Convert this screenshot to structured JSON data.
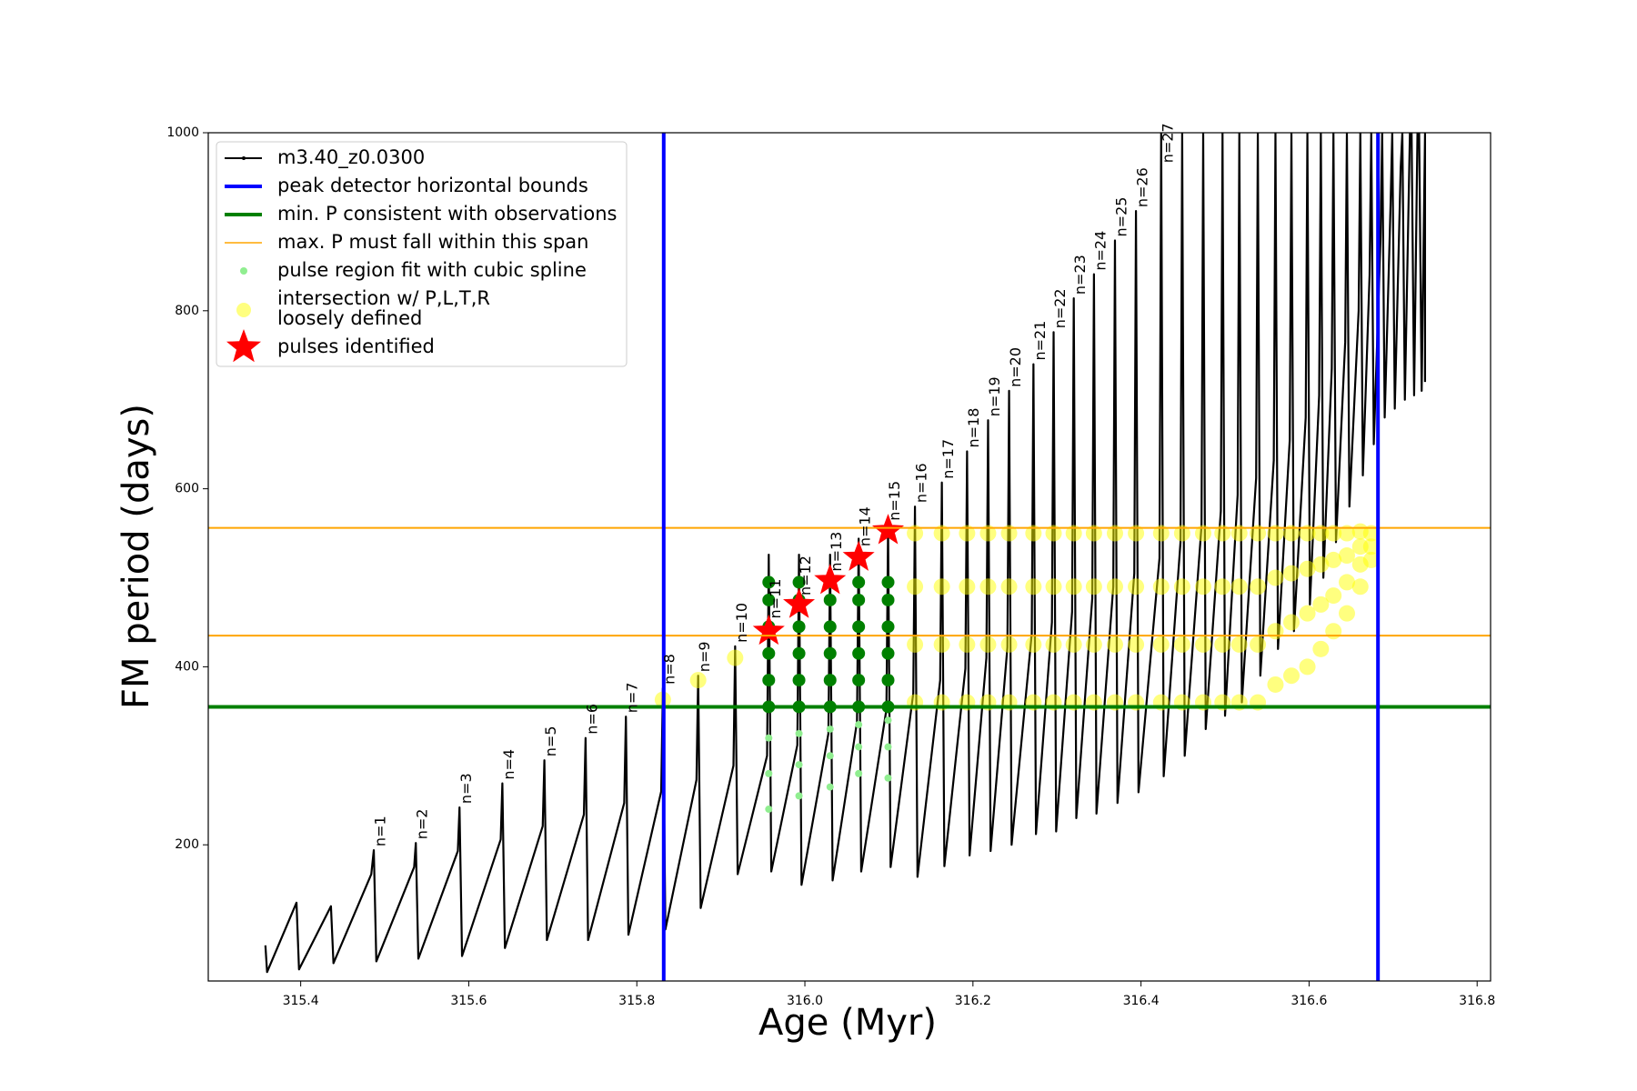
{
  "chart_data": {
    "type": "line",
    "xlabel": "Age (Myr)",
    "ylabel": "FM period (days)",
    "xlim": [
      315.29,
      316.816
    ],
    "ylim": [
      47,
      1000
    ],
    "xticks": [
      315.4,
      315.6,
      315.8,
      {
        "value": 316,
        "label": "316.0"
      },
      316.2,
      316.4,
      316.6,
      316.8
    ],
    "yticks": [
      200,
      400,
      600,
      800,
      1000
    ],
    "series": [
      {
        "name": "m3.40_z0.0300",
        "color": "#000000",
        "kind": "line",
        "x": [
          315.358,
          315.36,
          315.395,
          315.398,
          315.436,
          315.439,
          315.484,
          315.487,
          315.49,
          315.535,
          315.537,
          315.54,
          315.587,
          315.589,
          315.592,
          315.638,
          315.64,
          315.643,
          315.688,
          315.69,
          315.693,
          315.737,
          315.739,
          315.742,
          315.785,
          315.787,
          315.79,
          315.829,
          315.831,
          315.834,
          315.871,
          315.873,
          315.876,
          315.915,
          315.917,
          315.92,
          315.955,
          315.957,
          315.96,
          315.991,
          315.993,
          315.996,
          316.028,
          316.03,
          316.033,
          316.062,
          316.064,
          316.067,
          316.097,
          316.099,
          316.102,
          316.129,
          316.131,
          316.134,
          316.161,
          316.163,
          316.166,
          316.191,
          316.193,
          316.196,
          316.216,
          316.218,
          316.221,
          316.241,
          316.243,
          316.246,
          316.27,
          316.272,
          316.275,
          316.294,
          316.296,
          316.299,
          316.318,
          316.32,
          316.323,
          316.342,
          316.344,
          316.347,
          316.367,
          316.369,
          316.372,
          316.392,
          316.394,
          316.397,
          316.422,
          316.424,
          316.427,
          316.447,
          316.449,
          316.452,
          316.472,
          316.474,
          316.477,
          316.495,
          316.497,
          316.5,
          316.515,
          316.517,
          316.52,
          316.537,
          316.539,
          316.542,
          316.558,
          316.56,
          316.563,
          316.577,
          316.579,
          316.582,
          316.596,
          316.598,
          316.601,
          316.612,
          316.614,
          316.617,
          316.627,
          316.629,
          316.632,
          316.643,
          316.645,
          316.648,
          316.659,
          316.661,
          316.664,
          316.672,
          316.674,
          316.677,
          316.685,
          316.687,
          316.69,
          316.697,
          316.699,
          316.702,
          316.709,
          316.711,
          316.714,
          316.72,
          316.722,
          316.725,
          316.729,
          316.731,
          316.734,
          316.738,
          316.738
        ],
        "y": [
          87,
          57,
          135,
          60,
          131,
          67,
          167,
          194,
          69,
          175,
          202,
          72,
          193,
          242,
          75,
          206,
          269,
          84,
          221,
          295,
          93,
          234,
          320,
          93,
          247,
          344,
          99,
          260,
          376,
          105,
          273,
          390,
          129,
          289,
          423,
          167,
          300,
          526,
          170,
          312,
          526,
          155,
          325,
          526,
          160,
          338,
          544,
          170,
          352,
          556,
          175,
          370,
          580,
          164,
          385,
          607,
          176,
          398,
          642,
          188,
          410,
          677,
          193,
          422,
          710,
          200,
          437,
          740,
          212,
          450,
          776,
          215,
          462,
          814,
          230,
          477,
          841,
          235,
          490,
          879,
          247,
          505,
          912,
          259,
          522,
          1000,
          277,
          540,
          1000,
          300,
          558,
          1000,
          330,
          575,
          1000,
          345,
          593,
          1000,
          360,
          612,
          1000,
          390,
          632,
          1000,
          420,
          655,
          1000,
          440,
          680,
          1000,
          470,
          705,
          1000,
          500,
          735,
          1000,
          540,
          765,
          1000,
          580,
          800,
          1000,
          615,
          840,
          1000,
          650,
          880,
          1000,
          680,
          920,
          1000,
          690,
          960,
          1000,
          700,
          1000,
          1000,
          705,
          1000,
          1000,
          710,
          1000,
          720
        ]
      },
      {
        "name": "peak detector horizontal bounds",
        "color": "#0000ff",
        "kind": "vline",
        "x": [
          315.832,
          316.682
        ]
      },
      {
        "name": "min. P consistent with observations",
        "color": "#008000",
        "kind": "hline",
        "y": [
          355
        ]
      },
      {
        "name": "max. P must fall within this span",
        "color": "#ffa500",
        "kind": "hline",
        "y": [
          435,
          556
        ]
      },
      {
        "name": "pulse region fit with cubic spline",
        "color": "#90ee90",
        "kind": "scatter",
        "marker": "dot",
        "x": [
          315.957,
          315.957,
          315.957,
          315.993,
          315.993,
          315.993,
          316.03,
          316.03,
          316.03,
          316.064,
          316.064,
          316.064,
          316.099,
          316.099,
          316.099
        ],
        "y": [
          240,
          280,
          320,
          255,
          290,
          325,
          265,
          300,
          330,
          280,
          310,
          335,
          275,
          310,
          340
        ]
      },
      {
        "color": "#008000",
        "kind": "scatter",
        "marker": "thick",
        "x": [
          315.957,
          315.957,
          315.957,
          315.957,
          315.957,
          315.957,
          315.993,
          315.993,
          315.993,
          315.993,
          315.993,
          315.993,
          316.03,
          316.03,
          316.03,
          316.03,
          316.03,
          316.03,
          316.064,
          316.064,
          316.064,
          316.064,
          316.064,
          316.064,
          316.099,
          316.099,
          316.099,
          316.099,
          316.099,
          316.099
        ],
        "y": [
          355,
          385,
          415,
          445,
          475,
          495,
          355,
          385,
          415,
          445,
          475,
          495,
          355,
          385,
          415,
          445,
          475,
          495,
          355,
          385,
          415,
          445,
          475,
          495,
          355,
          385,
          415,
          445,
          475,
          495
        ]
      },
      {
        "name": [
          "intersection w/ P,L,T,R",
          "loosely defined"
        ],
        "color": "#ffff00",
        "kind": "scatter",
        "marker": "blob",
        "alpha": 0.5,
        "x": [
          315.831,
          315.873,
          315.917,
          316.131,
          316.131,
          316.131,
          316.131,
          316.163,
          316.163,
          316.163,
          316.163,
          316.193,
          316.193,
          316.193,
          316.193,
          316.218,
          316.218,
          316.218,
          316.218,
          316.243,
          316.243,
          316.243,
          316.243,
          316.272,
          316.272,
          316.272,
          316.272,
          316.296,
          316.296,
          316.296,
          316.296,
          316.32,
          316.32,
          316.32,
          316.32,
          316.344,
          316.344,
          316.344,
          316.344,
          316.369,
          316.369,
          316.369,
          316.369,
          316.394,
          316.394,
          316.394,
          316.394,
          316.424,
          316.424,
          316.424,
          316.424,
          316.449,
          316.449,
          316.449,
          316.449,
          316.474,
          316.474,
          316.474,
          316.474,
          316.497,
          316.497,
          316.497,
          316.497,
          316.517,
          316.517,
          316.517,
          316.517,
          316.539,
          316.539,
          316.539,
          316.539,
          316.56,
          316.56,
          316.56,
          316.56,
          316.579,
          316.579,
          316.579,
          316.579,
          316.598,
          316.598,
          316.598,
          316.598,
          316.614,
          316.614,
          316.614,
          316.614,
          316.629,
          316.629,
          316.629,
          316.629,
          316.645,
          316.645,
          316.645,
          316.645,
          316.661,
          316.661,
          316.661,
          316.661,
          316.674,
          316.674,
          316.674
        ],
        "y": [
          363,
          385,
          410,
          360,
          425,
          490,
          550,
          360,
          425,
          490,
          550,
          360,
          425,
          490,
          550,
          360,
          425,
          490,
          550,
          360,
          425,
          490,
          550,
          360,
          425,
          490,
          550,
          360,
          425,
          490,
          550,
          360,
          425,
          490,
          550,
          360,
          425,
          490,
          550,
          360,
          425,
          490,
          550,
          360,
          425,
          490,
          550,
          360,
          425,
          490,
          550,
          360,
          425,
          490,
          550,
          360,
          425,
          490,
          550,
          360,
          425,
          490,
          550,
          360,
          425,
          490,
          550,
          360,
          425,
          490,
          550,
          380,
          440,
          500,
          550,
          390,
          450,
          505,
          550,
          400,
          460,
          510,
          550,
          420,
          470,
          515,
          550,
          440,
          480,
          520,
          550,
          460,
          495,
          525,
          550,
          490,
          515,
          535,
          552,
          520,
          535,
          550
        ]
      },
      {
        "name": "pulses identified",
        "color": "#ff0000",
        "kind": "star",
        "x": [
          315.957,
          315.993,
          316.03,
          316.064,
          316.099
        ],
        "y": [
          440,
          470,
          497,
          523,
          553
        ]
      }
    ],
    "annotations": [
      {
        "text": "n=1",
        "x": 315.487,
        "y": 194
      },
      {
        "text": "n=2",
        "x": 315.537,
        "y": 202
      },
      {
        "text": "n=3",
        "x": 315.589,
        "y": 242
      },
      {
        "text": "n=4",
        "x": 315.64,
        "y": 269
      },
      {
        "text": "n=5",
        "x": 315.69,
        "y": 295
      },
      {
        "text": "n=6",
        "x": 315.739,
        "y": 320
      },
      {
        "text": "n=7",
        "x": 315.787,
        "y": 344
      },
      {
        "text": "n=8",
        "x": 315.831,
        "y": 376
      },
      {
        "text": "n=9",
        "x": 315.873,
        "y": 390
      },
      {
        "text": "n=10",
        "x": 315.917,
        "y": 423
      },
      {
        "text": "n=11",
        "x": 315.957,
        "y": 450
      },
      {
        "text": "n=12",
        "x": 315.993,
        "y": 476
      },
      {
        "text": "n=13",
        "x": 316.03,
        "y": 503
      },
      {
        "text": "n=14",
        "x": 316.064,
        "y": 531
      },
      {
        "text": "n=15",
        "x": 316.099,
        "y": 560
      },
      {
        "text": "n=16",
        "x": 316.131,
        "y": 580
      },
      {
        "text": "n=17",
        "x": 316.163,
        "y": 607
      },
      {
        "text": "n=18",
        "x": 316.193,
        "y": 642
      },
      {
        "text": "n=19",
        "x": 316.218,
        "y": 677
      },
      {
        "text": "n=20",
        "x": 316.243,
        "y": 710
      },
      {
        "text": "n=21",
        "x": 316.272,
        "y": 740
      },
      {
        "text": "n=22",
        "x": 316.296,
        "y": 776
      },
      {
        "text": "n=23",
        "x": 316.32,
        "y": 814
      },
      {
        "text": "n=24",
        "x": 316.344,
        "y": 841
      },
      {
        "text": "n=25",
        "x": 316.369,
        "y": 879
      },
      {
        "text": "n=26",
        "x": 316.394,
        "y": 912
      },
      {
        "text": "n=27",
        "x": 316.424,
        "y": 962
      }
    ]
  }
}
